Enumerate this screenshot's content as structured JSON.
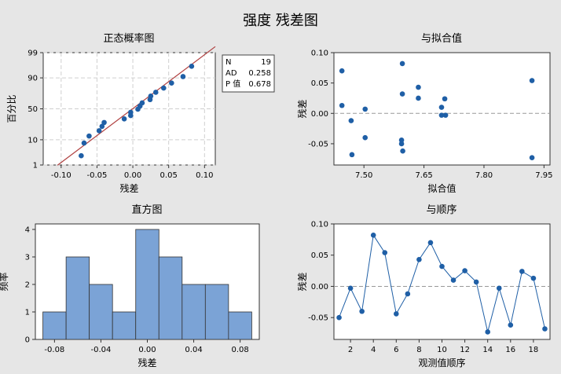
{
  "title": "强度 残差图",
  "chart_data": [
    {
      "type": "scatter",
      "name": "prob",
      "title": "正态概率图",
      "xlabel": "残差",
      "ylabel": "百分比",
      "xlim": [
        -0.125,
        0.115
      ],
      "xticks": [
        -0.1,
        -0.05,
        0.0,
        0.05,
        0.1
      ],
      "xtick_labels": [
        "-0.10",
        "-0.05",
        "0.00",
        "0.05",
        "0.10"
      ],
      "yticks": [
        1,
        10,
        50,
        90,
        99
      ],
      "yscale": "normal-probability",
      "grid": true,
      "points": [
        {
          "x": -0.072,
          "y": 2.6
        },
        {
          "x": -0.068,
          "y": 7.8
        },
        {
          "x": -0.061,
          "y": 13.0
        },
        {
          "x": -0.047,
          "y": 18.2
        },
        {
          "x": -0.043,
          "y": 23.4
        },
        {
          "x": -0.04,
          "y": 28.6
        },
        {
          "x": -0.012,
          "y": 33.8
        },
        {
          "x": -0.003,
          "y": 39.0
        },
        {
          "x": -0.003,
          "y": 44.2
        },
        {
          "x": 0.007,
          "y": 49.4
        },
        {
          "x": 0.01,
          "y": 54.6
        },
        {
          "x": 0.013,
          "y": 59.7
        },
        {
          "x": 0.024,
          "y": 64.9
        },
        {
          "x": 0.025,
          "y": 70.1
        },
        {
          "x": 0.032,
          "y": 75.3
        },
        {
          "x": 0.043,
          "y": 80.5
        },
        {
          "x": 0.054,
          "y": 85.7
        },
        {
          "x": 0.07,
          "y": 90.9
        },
        {
          "x": 0.082,
          "y": 96.1
        }
      ],
      "fit_line": [
        {
          "x": -0.105,
          "y": 0.98
        },
        {
          "x": 0.115,
          "y": 99.5
        }
      ],
      "fit_color": "#b04040",
      "point_color": "#1f5fa6",
      "legend": {
        "position": "right",
        "rows": [
          {
            "label": "N",
            "value": "19"
          },
          {
            "label": "AD",
            "value": "0.258"
          },
          {
            "label": "P 值",
            "value": "0.678"
          }
        ]
      }
    },
    {
      "type": "scatter",
      "name": "fit",
      "title": "与拟合值",
      "xlabel": "拟合值",
      "ylabel": "残差",
      "xlim": [
        7.425,
        7.965
      ],
      "ylim": [
        -0.085,
        0.1
      ],
      "xticks": [
        7.5,
        7.65,
        7.8,
        7.95
      ],
      "xtick_labels": [
        "7.50",
        "7.65",
        "7.80",
        "7.95"
      ],
      "yticks": [
        -0.05,
        0.0,
        0.05,
        0.1
      ],
      "ytick_labels": [
        "-0.05",
        "0.00",
        "0.05",
        "0.10"
      ],
      "reference_line": 0,
      "points": [
        {
          "x": 7.445,
          "y": 0.07
        },
        {
          "x": 7.445,
          "y": 0.013
        },
        {
          "x": 7.468,
          "y": -0.012
        },
        {
          "x": 7.47,
          "y": -0.068
        },
        {
          "x": 7.503,
          "y": 0.007
        },
        {
          "x": 7.503,
          "y": -0.04
        },
        {
          "x": 7.596,
          "y": 0.082
        },
        {
          "x": 7.596,
          "y": 0.032
        },
        {
          "x": 7.594,
          "y": -0.044
        },
        {
          "x": 7.594,
          "y": -0.05
        },
        {
          "x": 7.597,
          "y": -0.062
        },
        {
          "x": 7.636,
          "y": 0.043
        },
        {
          "x": 7.636,
          "y": 0.025
        },
        {
          "x": 7.694,
          "y": 0.01
        },
        {
          "x": 7.694,
          "y": -0.003
        },
        {
          "x": 7.702,
          "y": 0.024
        },
        {
          "x": 7.704,
          "y": -0.003
        },
        {
          "x": 7.92,
          "y": 0.054
        },
        {
          "x": 7.92,
          "y": -0.073
        }
      ],
      "point_color": "#1f5fa6"
    },
    {
      "type": "bar",
      "name": "hist",
      "title": "直方图",
      "xlabel": "残差",
      "ylabel": "频率",
      "bin_edges": [
        -0.09,
        -0.07,
        -0.05,
        -0.03,
        -0.01,
        0.01,
        0.03,
        0.05,
        0.07,
        0.09
      ],
      "values": [
        1,
        3,
        2,
        1,
        4,
        3,
        2,
        2,
        1
      ],
      "xlim": [
        -0.0965,
        0.0965
      ],
      "ylim": [
        0,
        4.2
      ],
      "xticks": [
        -0.08,
        -0.04,
        0.0,
        0.04,
        0.08
      ],
      "xtick_labels": [
        "-0.08",
        "-0.04",
        "0.00",
        "0.04",
        "0.08"
      ],
      "yticks": [
        0,
        1,
        2,
        3,
        4
      ],
      "bar_color": "#7ba3d6"
    },
    {
      "type": "line",
      "name": "order",
      "title": "与顺序",
      "xlabel": "观测值顺序",
      "ylabel": "残差",
      "xlim": [
        0.55,
        19.45
      ],
      "ylim": [
        -0.085,
        0.1
      ],
      "xticks": [
        2,
        4,
        6,
        8,
        10,
        12,
        14,
        16,
        18
      ],
      "yticks": [
        -0.05,
        0.0,
        0.05,
        0.1
      ],
      "ytick_labels": [
        "-0.05",
        "0.00",
        "0.05",
        "0.10"
      ],
      "reference_line": 0,
      "x": [
        1,
        2,
        3,
        4,
        5,
        6,
        7,
        8,
        9,
        10,
        11,
        12,
        13,
        14,
        15,
        16,
        17,
        18,
        19
      ],
      "values": [
        -0.05,
        -0.003,
        -0.04,
        0.082,
        0.054,
        -0.044,
        -0.012,
        0.043,
        0.07,
        0.032,
        0.01,
        0.025,
        0.007,
        -0.073,
        -0.003,
        -0.062,
        0.024,
        0.013,
        -0.068
      ],
      "line_color": "#1f5fa6"
    }
  ]
}
